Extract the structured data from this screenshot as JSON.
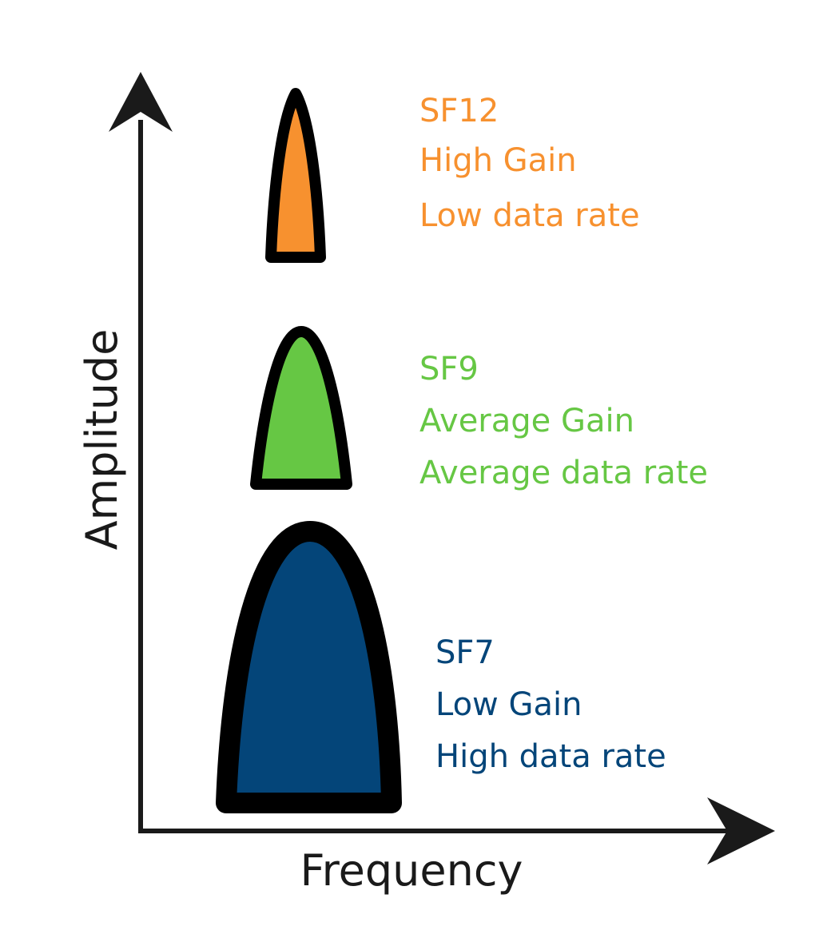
{
  "axes": {
    "x_label": "Frequency",
    "y_label": "Amplitude",
    "color": "#1a1a1a"
  },
  "peaks": [
    {
      "id": "sf12",
      "spreading_factor": "SF12",
      "gain": "High Gain",
      "data_rate": "Low data rate",
      "fill_color": "#f7912f",
      "text_color": "#f7912f"
    },
    {
      "id": "sf9",
      "spreading_factor": "SF9",
      "gain": "Average Gain",
      "data_rate": "Average data rate",
      "fill_color": "#66c744",
      "text_color": "#66c744"
    },
    {
      "id": "sf7",
      "spreading_factor": "SF7",
      "gain": "Low Gain",
      "data_rate": "High data rate",
      "fill_color": "#044579",
      "text_color": "#044579"
    }
  ]
}
